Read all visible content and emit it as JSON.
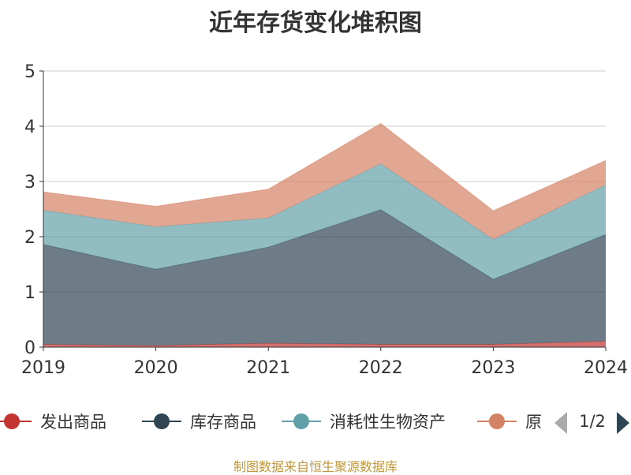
{
  "chart_data": {
    "type": "area",
    "title": "近年存货变化堆积图",
    "stacked": true,
    "x": [
      "2019",
      "2020",
      "2021",
      "2022",
      "2023",
      "2024"
    ],
    "ylim": [
      0,
      5
    ],
    "yticks": [
      "0",
      "1",
      "2",
      "3",
      "4",
      "5"
    ],
    "grid": true,
    "series": [
      {
        "name": "发出商品",
        "color": "#c23531",
        "values": [
          0.05,
          0.03,
          0.07,
          0.05,
          0.05,
          0.11
        ]
      },
      {
        "name": "库存商品",
        "color": "#2f4554",
        "values": [
          1.81,
          1.38,
          1.74,
          2.44,
          1.18,
          1.93
        ]
      },
      {
        "name": "消耗性生物资产",
        "color": "#61a0a8",
        "values": [
          0.62,
          0.77,
          0.53,
          0.83,
          0.72,
          0.9
        ]
      },
      {
        "name": "原材料",
        "color": "#d48265",
        "values": [
          0.33,
          0.37,
          0.52,
          0.73,
          0.52,
          0.44
        ]
      }
    ],
    "legend": {
      "position": "bottom",
      "visible_items": [
        "发出商品",
        "库存商品",
        "消耗性生物资产",
        "原"
      ],
      "page": "1/2"
    },
    "source": "制图数据来自恒生聚源数据库"
  }
}
